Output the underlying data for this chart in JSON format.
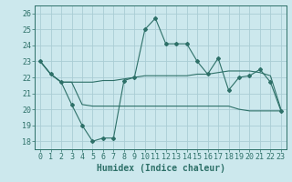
{
  "title": "",
  "xlabel": "Humidex (Indice chaleur)",
  "background_color": "#cce8ed",
  "line_color": "#2d7068",
  "grid_color": "#aacdd4",
  "xlim": [
    -0.5,
    23.5
  ],
  "ylim": [
    17.5,
    26.5
  ],
  "xticks": [
    0,
    1,
    2,
    3,
    4,
    5,
    6,
    7,
    8,
    9,
    10,
    11,
    12,
    13,
    14,
    15,
    16,
    17,
    18,
    19,
    20,
    21,
    22,
    23
  ],
  "yticks": [
    18,
    19,
    20,
    21,
    22,
    23,
    24,
    25,
    26
  ],
  "line1_x": [
    0,
    1,
    2,
    3,
    4,
    5,
    6,
    7,
    8,
    9,
    10,
    11,
    12,
    13,
    14,
    15,
    16,
    17,
    18,
    19,
    20,
    21,
    22,
    23
  ],
  "line1_y": [
    23.0,
    22.2,
    21.7,
    21.7,
    21.7,
    21.7,
    21.8,
    21.8,
    21.9,
    22.0,
    22.1,
    22.1,
    22.1,
    22.1,
    22.1,
    22.2,
    22.2,
    22.3,
    22.4,
    22.4,
    22.4,
    22.3,
    22.1,
    20.0
  ],
  "line2_x": [
    0,
    1,
    2,
    3,
    4,
    5,
    6,
    7,
    8,
    9,
    10,
    11,
    12,
    13,
    14,
    15,
    16,
    17,
    18,
    19,
    20,
    21,
    22,
    23
  ],
  "line2_y": [
    23.0,
    22.2,
    21.7,
    20.3,
    19.0,
    18.0,
    18.2,
    18.2,
    21.8,
    22.0,
    25.0,
    25.7,
    24.1,
    24.1,
    24.1,
    23.0,
    22.2,
    23.2,
    21.2,
    22.0,
    22.1,
    22.5,
    21.7,
    19.9
  ],
  "line3_x": [
    0,
    1,
    2,
    3,
    4,
    5,
    6,
    7,
    8,
    9,
    10,
    11,
    12,
    13,
    14,
    15,
    16,
    17,
    18,
    19,
    20,
    21,
    22,
    23
  ],
  "line3_y": [
    23.0,
    22.2,
    21.7,
    21.7,
    20.3,
    20.2,
    20.2,
    20.2,
    20.2,
    20.2,
    20.2,
    20.2,
    20.2,
    20.2,
    20.2,
    20.2,
    20.2,
    20.2,
    20.2,
    20.0,
    19.9,
    19.9,
    19.9,
    19.9
  ],
  "font_color": "#2d7068",
  "tick_fontsize": 6,
  "label_fontsize": 7
}
